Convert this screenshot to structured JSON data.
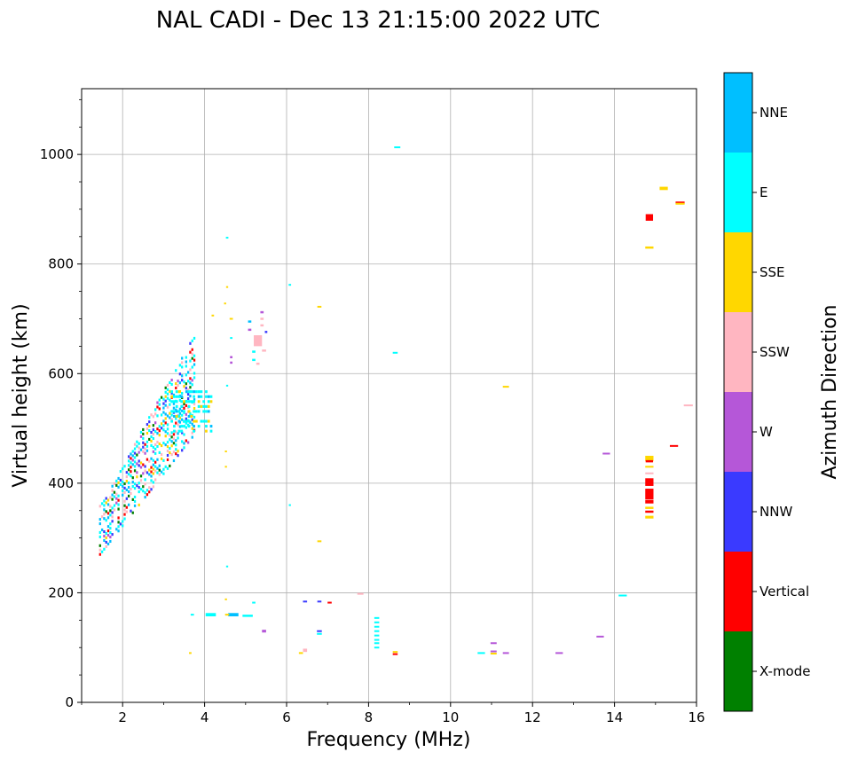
{
  "chart_data": {
    "type": "scatter",
    "title": "NAL CADI - Dec 13 21:15:00 2022 UTC",
    "xlabel": "Frequency (MHz)",
    "ylabel": "Virtual height (km)",
    "xlim": [
      1,
      16
    ],
    "ylim": [
      0,
      1120
    ],
    "xticks": [
      2,
      4,
      6,
      8,
      10,
      12,
      14,
      16
    ],
    "yticks": [
      0,
      200,
      400,
      600,
      800,
      1000
    ],
    "grid": true,
    "colorbar": {
      "title": "Azimuth Direction",
      "categories": [
        {
          "label": "X-mode",
          "color": "#008000"
        },
        {
          "label": "Vertical",
          "color": "#ff0000"
        },
        {
          "label": "NNW",
          "color": "#3a3aff"
        },
        {
          "label": "W",
          "color": "#b557d8"
        },
        {
          "label": "SSW",
          "color": "#ffb6c1"
        },
        {
          "label": "SSE",
          "color": "#ffd700"
        },
        {
          "label": "E",
          "color": "#00ffff"
        },
        {
          "label": "NNE",
          "color": "#00bfff"
        }
      ]
    },
    "points": [
      [
        8.7,
        1013,
        0.15,
        3,
        "E"
      ],
      [
        15.2,
        938,
        0.2,
        6,
        "SSE"
      ],
      [
        15.6,
        912,
        0.22,
        4,
        "Vertical"
      ],
      [
        15.6,
        910,
        0.22,
        2,
        "SSE"
      ],
      [
        14.85,
        885,
        0.18,
        12,
        "Vertical"
      ],
      [
        14.85,
        830,
        0.2,
        4,
        "SSE"
      ],
      [
        4.55,
        848,
        0.06,
        3,
        "E"
      ],
      [
        6.08,
        762,
        0.06,
        3,
        "E"
      ],
      [
        4.55,
        758,
        0.05,
        3,
        "SSE"
      ],
      [
        4.5,
        728,
        0.05,
        3,
        "SSE"
      ],
      [
        6.8,
        722,
        0.1,
        3,
        "SSE"
      ],
      [
        4.2,
        706,
        0.06,
        3,
        "SSE"
      ],
      [
        4.65,
        700,
        0.08,
        3,
        "SSE"
      ],
      [
        4.65,
        665,
        0.06,
        3,
        "E"
      ],
      [
        5.4,
        712,
        0.08,
        4,
        "W"
      ],
      [
        5.4,
        700,
        0.08,
        4,
        "SSW"
      ],
      [
        5.1,
        695,
        0.08,
        4,
        "NNE"
      ],
      [
        5.1,
        680,
        0.08,
        4,
        "W"
      ],
      [
        5.4,
        688,
        0.08,
        4,
        "SSW"
      ],
      [
        5.3,
        660,
        0.2,
        20,
        "SSW"
      ],
      [
        5.5,
        676,
        0.06,
        4,
        "NNW"
      ],
      [
        5.45,
        642,
        0.1,
        4,
        "SSW"
      ],
      [
        5.2,
        640,
        0.08,
        4,
        "E"
      ],
      [
        5.2,
        625,
        0.08,
        4,
        "E"
      ],
      [
        5.3,
        618,
        0.08,
        4,
        "SSW"
      ],
      [
        4.65,
        630,
        0.06,
        4,
        "W"
      ],
      [
        4.65,
        620,
        0.06,
        4,
        "W"
      ],
      [
        4.55,
        578,
        0.05,
        3,
        "E"
      ],
      [
        8.65,
        638,
        0.12,
        3,
        "E"
      ],
      [
        11.35,
        576,
        0.15,
        3,
        "SSE"
      ],
      [
        15.8,
        542,
        0.22,
        3,
        "SSW"
      ],
      [
        15.45,
        468,
        0.2,
        3,
        "Vertical"
      ],
      [
        13.8,
        454,
        0.18,
        3,
        "W"
      ],
      [
        14.85,
        445,
        0.2,
        10,
        "SSE"
      ],
      [
        14.85,
        440,
        0.18,
        4,
        "Vertical"
      ],
      [
        14.85,
        430,
        0.2,
        3,
        "SSE"
      ],
      [
        14.85,
        418,
        0.2,
        3,
        "SSW"
      ],
      [
        14.85,
        402,
        0.2,
        14,
        "Vertical"
      ],
      [
        14.85,
        380,
        0.2,
        20,
        "Vertical"
      ],
      [
        14.85,
        366,
        0.2,
        6,
        "Vertical"
      ],
      [
        14.85,
        355,
        0.2,
        4,
        "SSE"
      ],
      [
        14.85,
        348,
        0.2,
        4,
        "Vertical"
      ],
      [
        14.85,
        338,
        0.2,
        5,
        "SSE"
      ],
      [
        4.52,
        458,
        0.05,
        3,
        "SSE"
      ],
      [
        4.52,
        430,
        0.05,
        3,
        "SSE"
      ],
      [
        6.08,
        360,
        0.05,
        3,
        "E"
      ],
      [
        6.8,
        294,
        0.1,
        3,
        "SSE"
      ],
      [
        4.55,
        248,
        0.05,
        3,
        "E"
      ],
      [
        7.8,
        198,
        0.15,
        2,
        "SSW"
      ],
      [
        14.2,
        195,
        0.2,
        3,
        "E"
      ],
      [
        4.52,
        188,
        0.05,
        3,
        "SSE"
      ],
      [
        6.45,
        184,
        0.1,
        3,
        "NNW"
      ],
      [
        6.8,
        184,
        0.1,
        3,
        "NNW"
      ],
      [
        7.05,
        182,
        0.1,
        2,
        "Vertical"
      ],
      [
        5.2,
        182,
        0.08,
        2,
        "E"
      ],
      [
        3.7,
        160,
        0.08,
        3,
        "E"
      ],
      [
        4.15,
        160,
        0.25,
        6,
        "E"
      ],
      [
        4.7,
        160,
        0.25,
        6,
        "NNE"
      ],
      [
        4.55,
        160,
        0.1,
        3,
        "SSE"
      ],
      [
        5.05,
        158,
        0.25,
        4,
        "E"
      ],
      [
        5.45,
        130,
        0.1,
        5,
        "W"
      ],
      [
        6.8,
        130,
        0.12,
        3,
        "NNW"
      ],
      [
        6.8,
        125,
        0.12,
        3,
        "E"
      ],
      [
        8.2,
        154,
        0.12,
        3,
        "E"
      ],
      [
        8.2,
        146,
        0.12,
        3,
        "E"
      ],
      [
        8.2,
        138,
        0.12,
        3,
        "E"
      ],
      [
        8.2,
        130,
        0.12,
        3,
        "E"
      ],
      [
        8.2,
        122,
        0.12,
        3,
        "E"
      ],
      [
        8.2,
        114,
        0.12,
        3,
        "E"
      ],
      [
        8.2,
        108,
        0.12,
        3,
        "E"
      ],
      [
        8.2,
        100,
        0.12,
        3,
        "E"
      ],
      [
        8.65,
        92,
        0.12,
        3,
        "SSE"
      ],
      [
        8.65,
        88,
        0.12,
        3,
        "Vertical"
      ],
      [
        6.35,
        90,
        0.1,
        3,
        "SSE"
      ],
      [
        6.45,
        95,
        0.1,
        6,
        "SSW"
      ],
      [
        3.65,
        90,
        0.06,
        3,
        "SSE"
      ],
      [
        11.05,
        108,
        0.15,
        3,
        "W"
      ],
      [
        11.05,
        93,
        0.15,
        3,
        "W"
      ],
      [
        11.05,
        89,
        0.15,
        3,
        "SSE"
      ],
      [
        10.75,
        90,
        0.18,
        3,
        "E"
      ],
      [
        11.35,
        90,
        0.15,
        3,
        "W"
      ],
      [
        12.65,
        90,
        0.18,
        3,
        "W"
      ],
      [
        13.65,
        120,
        0.18,
        2,
        "W"
      ]
    ]
  }
}
